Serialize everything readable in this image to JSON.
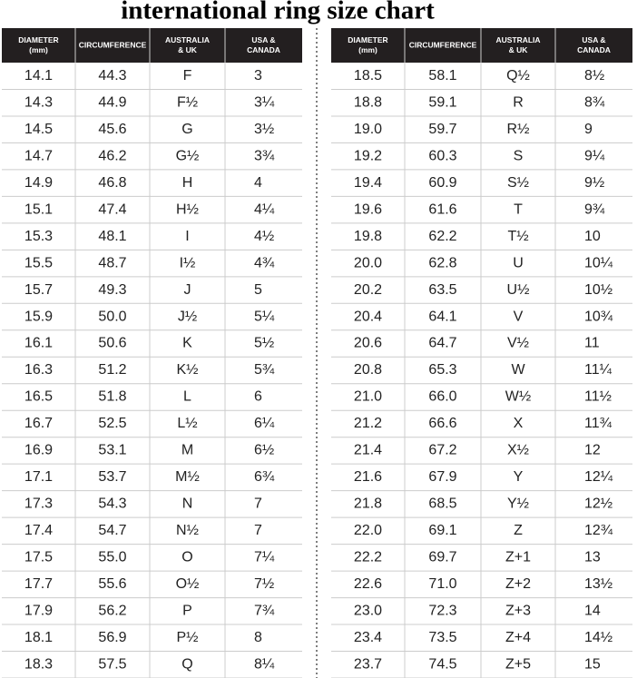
{
  "title": "international ring size chart",
  "tables": [
    {
      "header": [
        [
          "DIAMETER",
          "(mm)"
        ],
        [
          "CIRCUMFERENCE"
        ],
        [
          "AUSTRALIA",
          "& UK"
        ],
        [
          "USA &",
          "CANADA"
        ]
      ],
      "rows": [
        [
          "14.1",
          "44.3",
          "F",
          "3"
        ],
        [
          "14.3",
          "44.9",
          "F½",
          "3¼"
        ],
        [
          "14.5",
          "45.6",
          "G",
          "3½"
        ],
        [
          "14.7",
          "46.2",
          "G½",
          "3¾"
        ],
        [
          "14.9",
          "46.8",
          "H",
          "4"
        ],
        [
          "15.1",
          "47.4",
          "H½",
          "4¼"
        ],
        [
          "15.3",
          "48.1",
          "I",
          "4½"
        ],
        [
          "15.5",
          "48.7",
          "I½",
          "4¾"
        ],
        [
          "15.7",
          "49.3",
          "J",
          "5"
        ],
        [
          "15.9",
          "50.0",
          "J½",
          "5¼"
        ],
        [
          "16.1",
          "50.6",
          "K",
          "5½"
        ],
        [
          "16.3",
          "51.2",
          "K½",
          "5¾"
        ],
        [
          "16.5",
          "51.8",
          "L",
          "6"
        ],
        [
          "16.7",
          "52.5",
          "L½",
          "6¼"
        ],
        [
          "16.9",
          "53.1",
          "M",
          "6½"
        ],
        [
          "17.1",
          "53.7",
          "M½",
          "6¾"
        ],
        [
          "17.3",
          "54.3",
          "N",
          "7"
        ],
        [
          "17.4",
          "54.7",
          "N½",
          "7"
        ],
        [
          "17.5",
          "55.0",
          "O",
          "7¼"
        ],
        [
          "17.7",
          "55.6",
          "O½",
          "7½"
        ],
        [
          "17.9",
          "56.2",
          "P",
          "7¾"
        ],
        [
          "18.1",
          "56.9",
          "P½",
          "8"
        ],
        [
          "18.3",
          "57.5",
          "Q",
          "8¼"
        ]
      ]
    },
    {
      "header": [
        [
          "DIAMETER",
          "(mm)"
        ],
        [
          "CIRCUMFERENCE"
        ],
        [
          "AUSTRALIA",
          "& UK"
        ],
        [
          "USA &",
          "CANADA"
        ]
      ],
      "rows": [
        [
          "18.5",
          "58.1",
          "Q½",
          "8½"
        ],
        [
          "18.8",
          "59.1",
          "R",
          "8¾"
        ],
        [
          "19.0",
          "59.7",
          "R½",
          "9"
        ],
        [
          "19.2",
          "60.3",
          "S",
          "9¼"
        ],
        [
          "19.4",
          "60.9",
          "S½",
          "9½"
        ],
        [
          "19.6",
          "61.6",
          "T",
          "9¾"
        ],
        [
          "19.8",
          "62.2",
          "T½",
          "10"
        ],
        [
          "20.0",
          "62.8",
          "U",
          "10¼"
        ],
        [
          "20.2",
          "63.5",
          "U½",
          "10½"
        ],
        [
          "20.4",
          "64.1",
          "V",
          "10¾"
        ],
        [
          "20.6",
          "64.7",
          "V½",
          "11"
        ],
        [
          "20.8",
          "65.3",
          "W",
          "11¼"
        ],
        [
          "21.0",
          "66.0",
          "W½",
          "11½"
        ],
        [
          "21.2",
          "66.6",
          "X",
          "11¾"
        ],
        [
          "21.4",
          "67.2",
          "X½",
          "12"
        ],
        [
          "21.6",
          "67.9",
          "Y",
          "12¼"
        ],
        [
          "21.8",
          "68.5",
          "Y½",
          "12½"
        ],
        [
          "22.0",
          "69.1",
          "Z",
          "12¾"
        ],
        [
          "22.2",
          "69.7",
          "Z+1",
          "13"
        ],
        [
          "22.6",
          "71.0",
          "Z+2",
          "13½"
        ],
        [
          "23.0",
          "72.3",
          "Z+3",
          "14"
        ],
        [
          "23.4",
          "73.5",
          "Z+4",
          "14½"
        ],
        [
          "23.7",
          "74.5",
          "Z+5",
          "15"
        ]
      ]
    }
  ]
}
